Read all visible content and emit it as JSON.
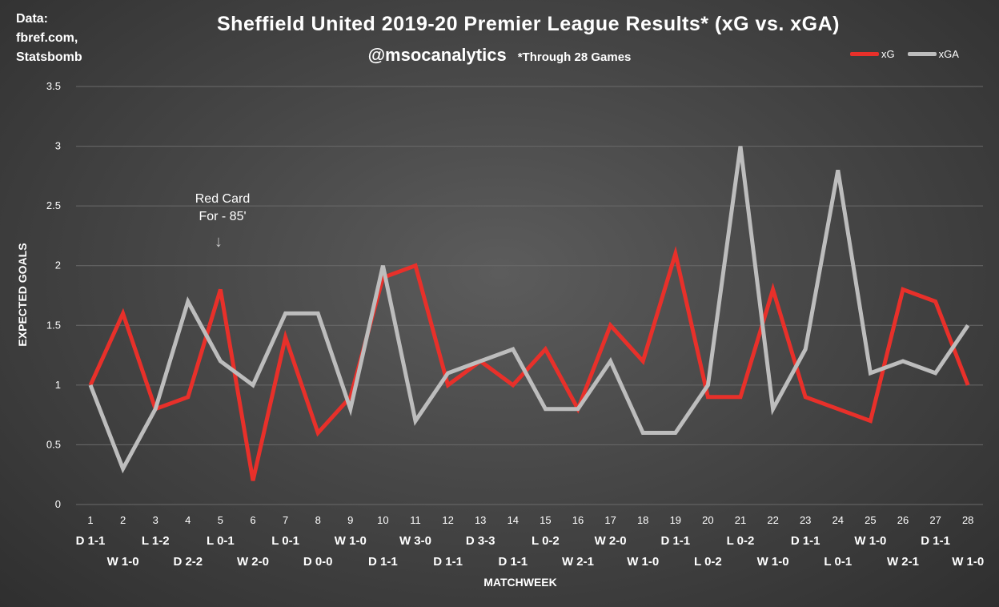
{
  "source": {
    "line1": "Data:",
    "line2": "fbref.com,",
    "line3": "Statsbomb"
  },
  "title": "Sheffield United 2019-20 Premier League Results* (xG vs. xGA)",
  "subtitle": {
    "handle": "@msocanalytics",
    "note": "*Through 28 Games"
  },
  "annotation": {
    "line1": "Red Card",
    "line2": "For - 85'",
    "arrow_icon": "down-arrow-icon"
  },
  "colors": {
    "xg": "#e8302a",
    "xga": "#bdbdbd",
    "grid": "#6a6a6a"
  },
  "chart_data": {
    "type": "line",
    "title": "Sheffield United 2019-20 Premier League Results* (xG vs. xGA)",
    "xlabel": "MATCHWEEK",
    "ylabel": "EXPECTED GOALS",
    "ylim": [
      0,
      3.5
    ],
    "yticks": [
      "0",
      "0.5",
      "1",
      "1.5",
      "2",
      "2.5",
      "3",
      "3.5"
    ],
    "grid": true,
    "legend_position": "top-right",
    "x": [
      1,
      2,
      3,
      4,
      5,
      6,
      7,
      8,
      9,
      10,
      11,
      12,
      13,
      14,
      15,
      16,
      17,
      18,
      19,
      20,
      21,
      22,
      23,
      24,
      25,
      26,
      27,
      28
    ],
    "results": [
      "D 1-1",
      "W 1-0",
      "L 1-2",
      "D 2-2",
      "L 0-1",
      "W 2-0",
      "L 0-1",
      "D 0-0",
      "W 1-0",
      "D 1-1",
      "W 3-0",
      "D 1-1",
      "D 3-3",
      "D 1-1",
      "L 0-2",
      "W 2-1",
      "W 2-0",
      "W 1-0",
      "D 1-1",
      "L 0-2",
      "L 0-2",
      "W 1-0",
      "D 1-1",
      "L 0-1",
      "W 1-0",
      "W 2-1",
      "D 1-1",
      "W 1-0"
    ],
    "series": [
      {
        "name": "xG",
        "values": [
          1.0,
          1.6,
          0.8,
          0.9,
          1.8,
          0.2,
          1.4,
          0.6,
          0.9,
          1.9,
          2.0,
          1.0,
          1.2,
          1.0,
          1.3,
          0.8,
          1.5,
          1.2,
          2.1,
          0.9,
          0.9,
          1.8,
          0.9,
          0.8,
          0.7,
          1.8,
          1.7,
          1.0
        ]
      },
      {
        "name": "xGA",
        "values": [
          1.0,
          0.3,
          0.8,
          1.7,
          1.2,
          1.0,
          1.6,
          1.6,
          0.8,
          2.0,
          0.7,
          1.1,
          1.2,
          1.3,
          0.8,
          0.8,
          1.2,
          0.6,
          0.6,
          1.0,
          3.0,
          0.8,
          1.3,
          2.8,
          1.1,
          1.2,
          1.1,
          1.5
        ]
      }
    ],
    "annotation": {
      "x": 5,
      "text": "Red Card For - 85'"
    }
  }
}
